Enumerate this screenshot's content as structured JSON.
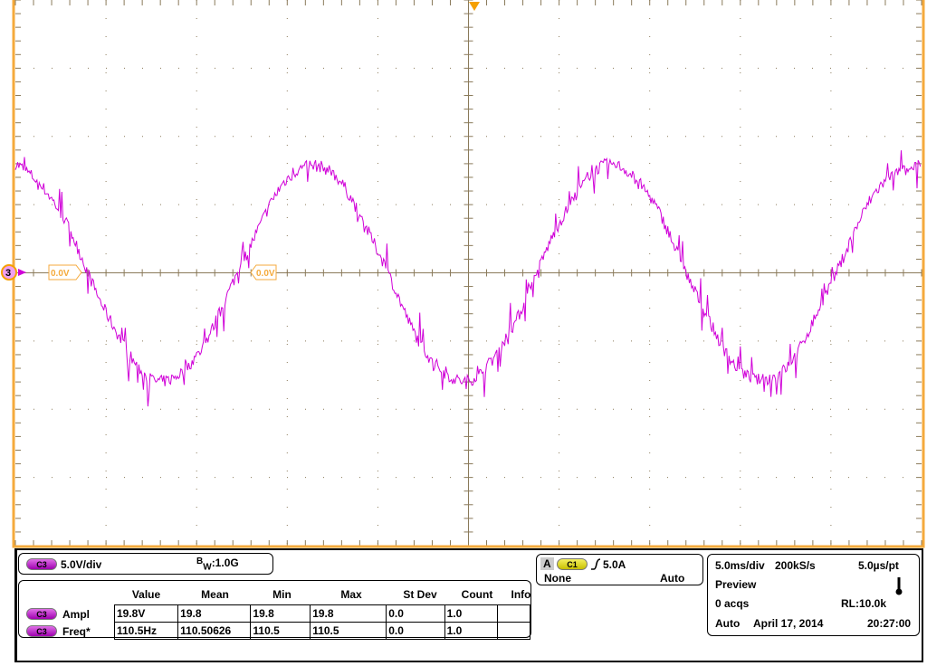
{
  "colors": {
    "frame": "#f5aa3c",
    "trace": "#d000d8",
    "grid": "#8a7a5a",
    "marker": "#f5a000"
  },
  "channel_marker": "3",
  "ground_labels": [
    "0.0V",
    "0.0V"
  ],
  "vertical": {
    "channel": "C3",
    "scale": "5.0V/div",
    "bw_prefix": "B",
    "bw_sub": "W",
    "bw_value": ":1.0G"
  },
  "measurements": {
    "headers": [
      "Value",
      "Mean",
      "Min",
      "Max",
      "St Dev",
      "Count",
      "Info"
    ],
    "rows": [
      {
        "channel": "C3",
        "name": "Ampl",
        "cells": [
          "19.8V",
          "19.8",
          "19.8",
          "19.8",
          "0.0",
          "1.0",
          ""
        ]
      },
      {
        "channel": "C3",
        "name": "Freq*",
        "cells": [
          "110.5Hz",
          "110.50626",
          "110.5",
          "110.5",
          "0.0",
          "1.0",
          ""
        ]
      }
    ]
  },
  "trigger": {
    "badge": "A",
    "channel": "C1",
    "slope_icon": "rising-edge-icon",
    "level": "5.0A",
    "source_mode": "None",
    "mode": "Auto"
  },
  "acquisition": {
    "timebase": "5.0ms/div",
    "sample_rate": "200kS/s",
    "resolution": "5.0µs/pt",
    "state": "Preview",
    "acqs": "0 acqs",
    "record_length": "RL:10.0k",
    "mode": "Auto",
    "date": "April 17, 2014",
    "time": "20:27:00",
    "icon": "thermometer-icon"
  },
  "chart_data": {
    "type": "line",
    "xlabel": "",
    "ylabel": "",
    "x_unit": "ms",
    "y_unit": "V",
    "xlim": [
      -25,
      25
    ],
    "ylim": [
      -20,
      20
    ],
    "x_divisions": 10,
    "y_divisions": 8,
    "grid": true,
    "series": [
      {
        "channel": "C3",
        "x": [
          -25,
          -22.5,
          -20,
          -17.5,
          -15,
          -12.5,
          -10,
          -7.5,
          -5,
          -2.5,
          0,
          2.5,
          5,
          7.5,
          10,
          12.5,
          15,
          17.5,
          20,
          22.5,
          25
        ],
        "y": [
          8.0,
          4.4,
          -2.9,
          -7.8,
          -6.1,
          0.7,
          6.9,
          7.3,
          1.6,
          -5.5,
          -7.9,
          -3.8,
          3.6,
          7.9,
          5.6,
          -1.4,
          -7.2,
          -7.0,
          -0.8,
          6.0,
          7.8
        ]
      }
    ]
  }
}
